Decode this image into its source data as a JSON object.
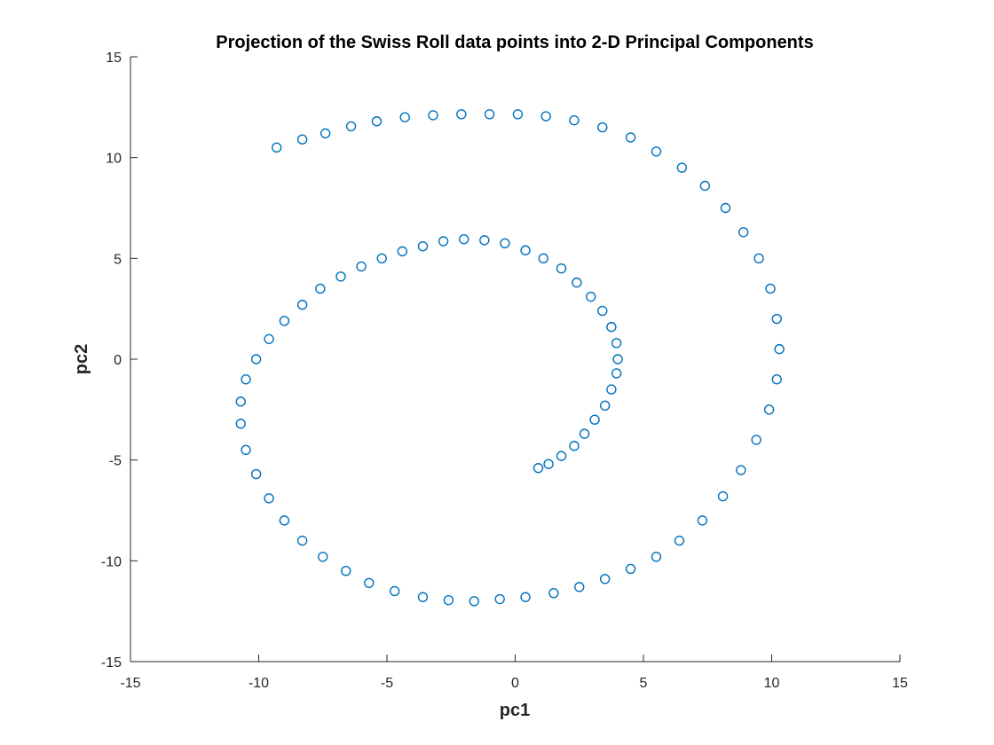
{
  "chart_data": {
    "type": "scatter",
    "title": "Projection of the Swiss Roll data points into 2-D Principal Components",
    "xlabel": "pc1",
    "ylabel": "pc2",
    "xlim": [
      -15,
      15
    ],
    "ylim": [
      -15,
      15
    ],
    "xticks": [
      -15,
      -10,
      -5,
      0,
      5,
      10,
      15
    ],
    "yticks": [
      -15,
      -10,
      -5,
      0,
      5,
      10,
      15
    ],
    "grid": false,
    "legend": "none",
    "marker": "open-circle",
    "color": "#0072BD",
    "series": [
      {
        "x": [
          0.9,
          1.3,
          1.8,
          2.3,
          2.7,
          3.1,
          3.5,
          3.75,
          3.95,
          4.0,
          3.95,
          3.75,
          3.4,
          2.95,
          2.4,
          1.8,
          1.1,
          0.4,
          -0.4,
          -1.2,
          -2.0,
          -2.8,
          -3.6,
          -4.4,
          -5.2,
          -6.0,
          -6.8,
          -7.6,
          -8.3,
          -9.0,
          -9.6,
          -10.1,
          -10.5,
          -10.7,
          -10.7,
          -10.5,
          -10.1,
          -9.6,
          -9.0,
          -8.3,
          -7.5,
          -6.6,
          -5.7,
          -4.7,
          -3.6,
          -2.6,
          -1.6,
          -0.6,
          0.4,
          1.5,
          2.5,
          3.5,
          4.5,
          5.5,
          6.4,
          7.3,
          8.1,
          8.8,
          9.4,
          9.9,
          10.2,
          10.3,
          10.2,
          9.95,
          9.5,
          8.9,
          8.2,
          7.4,
          6.5,
          5.5,
          4.5,
          3.4,
          2.3,
          1.2,
          0.1,
          -1.0,
          -2.1,
          -3.2,
          -4.3,
          -5.4,
          -6.4,
          -7.4,
          -8.3,
          -9.3
        ],
        "y": [
          -5.4,
          -5.2,
          -4.8,
          -4.3,
          -3.7,
          -3.0,
          -2.3,
          -1.5,
          -0.7,
          0.0,
          0.8,
          1.6,
          2.4,
          3.1,
          3.8,
          4.5,
          5.0,
          5.4,
          5.75,
          5.9,
          5.95,
          5.85,
          5.6,
          5.35,
          5.0,
          4.6,
          4.1,
          3.5,
          2.7,
          1.9,
          1.0,
          0.0,
          -1.0,
          -2.1,
          -3.2,
          -4.5,
          -5.7,
          -6.9,
          -8.0,
          -9.0,
          -9.8,
          -10.5,
          -11.1,
          -11.5,
          -11.8,
          -11.95,
          -12.0,
          -11.9,
          -11.8,
          -11.6,
          -11.3,
          -10.9,
          -10.4,
          -9.8,
          -9.0,
          -8.0,
          -6.8,
          -5.5,
          -4.0,
          -2.5,
          -1.0,
          0.5,
          2.0,
          3.5,
          5.0,
          6.3,
          7.5,
          8.6,
          9.5,
          10.3,
          11.0,
          11.5,
          11.85,
          12.05,
          12.15,
          12.15,
          12.15,
          12.1,
          12.0,
          11.8,
          11.55,
          11.2,
          10.9,
          10.5
        ]
      }
    ]
  }
}
